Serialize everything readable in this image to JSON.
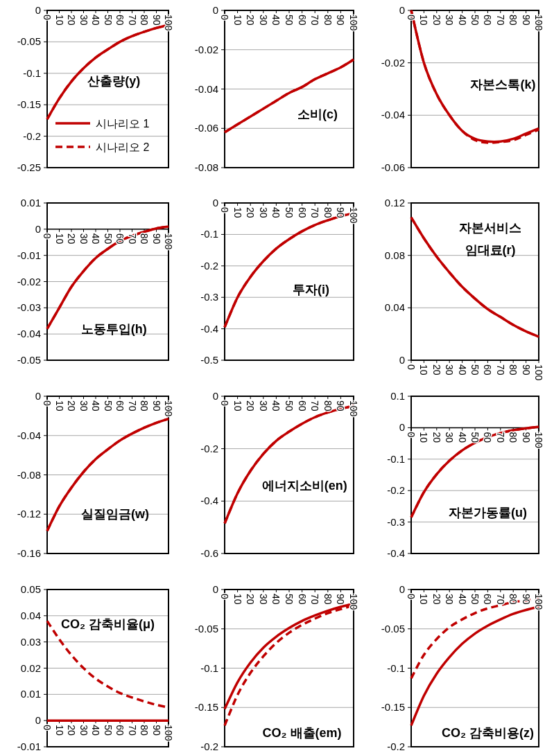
{
  "chart_data": [
    {
      "type": "line",
      "title": "산출량(y)",
      "x": [
        0,
        10,
        20,
        30,
        40,
        50,
        60,
        70,
        80,
        90,
        100
      ],
      "xlim": [
        0,
        100
      ],
      "xticks": [
        0,
        10,
        20,
        30,
        40,
        50,
        60,
        70,
        80,
        90,
        100
      ],
      "ylim": [
        -0.25,
        0
      ],
      "yticks": [
        -0.25,
        -0.2,
        -0.15,
        -0.1,
        -0.05,
        0
      ],
      "grid": "y",
      "legend": "bottom left",
      "series": [
        {
          "name": "시나리오 1",
          "color": "#c00000",
          "line_style": "solid",
          "values": [
            -0.173,
            -0.14,
            -0.113,
            -0.092,
            -0.075,
            -0.062,
            -0.05,
            -0.041,
            -0.034,
            -0.028,
            -0.023
          ]
        },
        {
          "name": "시나리오 2",
          "color": "#c00000",
          "line_style": "dashed",
          "values": [
            -0.173,
            -0.14,
            -0.113,
            -0.092,
            -0.075,
            -0.062,
            -0.05,
            -0.041,
            -0.034,
            -0.028,
            -0.023
          ]
        }
      ]
    },
    {
      "type": "line",
      "title": "소비(c)",
      "x": [
        0,
        10,
        20,
        30,
        40,
        50,
        60,
        70,
        80,
        90,
        100
      ],
      "xlim": [
        0,
        100
      ],
      "xticks": [
        0,
        10,
        20,
        30,
        40,
        50,
        60,
        70,
        80,
        90,
        100
      ],
      "ylim": [
        -0.08,
        0
      ],
      "yticks": [
        -0.08,
        -0.06,
        -0.04,
        -0.02,
        0
      ],
      "grid": "y",
      "series": [
        {
          "color": "#c00000",
          "line_style": "solid",
          "values": [
            -0.062,
            -0.058,
            -0.054,
            -0.05,
            -0.046,
            -0.042,
            -0.039,
            -0.035,
            -0.032,
            -0.029,
            -0.025
          ]
        },
        {
          "color": "#c00000",
          "line_style": "dashed",
          "values": [
            -0.062,
            -0.058,
            -0.054,
            -0.05,
            -0.046,
            -0.042,
            -0.039,
            -0.035,
            -0.032,
            -0.029,
            -0.025
          ]
        }
      ]
    },
    {
      "type": "line",
      "title": "자본스톡(k)",
      "x": [
        0,
        10,
        20,
        30,
        40,
        50,
        60,
        70,
        80,
        90,
        100
      ],
      "xlim": [
        0,
        100
      ],
      "xticks": [
        0,
        10,
        20,
        30,
        40,
        50,
        60,
        70,
        80,
        90,
        100
      ],
      "ylim": [
        -0.06,
        0
      ],
      "yticks": [
        -0.06,
        -0.04,
        -0.02,
        0
      ],
      "grid": "y",
      "series": [
        {
          "color": "#c00000",
          "line_style": "solid",
          "values": [
            0,
            -0.02,
            -0.032,
            -0.04,
            -0.046,
            -0.049,
            -0.05,
            -0.05,
            -0.049,
            -0.047,
            -0.045
          ]
        },
        {
          "color": "#c00000",
          "line_style": "dashed",
          "values": [
            0,
            -0.02,
            -0.032,
            -0.04,
            -0.046,
            -0.0495,
            -0.0505,
            -0.0502,
            -0.0495,
            -0.0475,
            -0.0455
          ]
        }
      ]
    },
    {
      "type": "line",
      "title": "노동투입(h)",
      "x": [
        0,
        10,
        20,
        30,
        40,
        50,
        60,
        70,
        80,
        90,
        100
      ],
      "xlim": [
        0,
        100
      ],
      "xticks": [
        0,
        10,
        20,
        30,
        40,
        50,
        60,
        70,
        80,
        90,
        100
      ],
      "ylim": [
        -0.05,
        0.01
      ],
      "yticks": [
        -0.05,
        -0.04,
        -0.03,
        -0.02,
        -0.01,
        0,
        0.01
      ],
      "grid": "y",
      "series": [
        {
          "color": "#c00000",
          "line_style": "solid",
          "values": [
            -0.038,
            -0.03,
            -0.022,
            -0.016,
            -0.011,
            -0.0075,
            -0.0045,
            -0.0025,
            -0.001,
            0.0003,
            0.001
          ]
        },
        {
          "color": "#c00000",
          "line_style": "dashed",
          "values": [
            -0.038,
            -0.03,
            -0.022,
            -0.016,
            -0.011,
            -0.0075,
            -0.0045,
            -0.0025,
            -0.001,
            0.0003,
            0.001
          ]
        }
      ]
    },
    {
      "type": "line",
      "title": "투자(i)",
      "x": [
        0,
        10,
        20,
        30,
        40,
        50,
        60,
        70,
        80,
        90,
        100
      ],
      "xlim": [
        0,
        100
      ],
      "xticks": [
        0,
        10,
        20,
        30,
        40,
        50,
        60,
        70,
        80,
        90,
        100
      ],
      "ylim": [
        -0.5,
        0
      ],
      "yticks": [
        -0.5,
        -0.4,
        -0.3,
        -0.2,
        -0.1,
        0
      ],
      "grid": "y",
      "series": [
        {
          "color": "#c00000",
          "line_style": "solid",
          "values": [
            -0.395,
            -0.3,
            -0.235,
            -0.185,
            -0.145,
            -0.115,
            -0.09,
            -0.07,
            -0.055,
            -0.042,
            -0.032
          ]
        },
        {
          "color": "#c00000",
          "line_style": "dashed",
          "values": [
            -0.395,
            -0.3,
            -0.235,
            -0.185,
            -0.145,
            -0.115,
            -0.09,
            -0.07,
            -0.055,
            -0.042,
            -0.032
          ]
        }
      ]
    },
    {
      "type": "line",
      "title": "자본서비스\n임대료(r)",
      "x": [
        0,
        10,
        20,
        30,
        40,
        50,
        60,
        70,
        80,
        90,
        100
      ],
      "xlim": [
        0,
        100
      ],
      "xticks": [
        0,
        10,
        20,
        30,
        40,
        50,
        60,
        70,
        80,
        90,
        100
      ],
      "ylim": [
        0,
        0.12
      ],
      "yticks": [
        0,
        0.04,
        0.08,
        0.12
      ],
      "grid": "y",
      "series": [
        {
          "color": "#c00000",
          "line_style": "solid",
          "values": [
            0.109,
            0.093,
            0.079,
            0.067,
            0.056,
            0.047,
            0.039,
            0.033,
            0.027,
            0.022,
            0.018
          ]
        },
        {
          "color": "#c00000",
          "line_style": "dashed",
          "values": [
            0.109,
            0.093,
            0.079,
            0.067,
            0.056,
            0.047,
            0.039,
            0.033,
            0.027,
            0.022,
            0.018
          ]
        }
      ]
    },
    {
      "type": "line",
      "title": "실질임금(w)",
      "x": [
        0,
        10,
        20,
        30,
        40,
        50,
        60,
        70,
        80,
        90,
        100
      ],
      "xlim": [
        0,
        100
      ],
      "xticks": [
        0,
        10,
        20,
        30,
        40,
        50,
        60,
        70,
        80,
        90,
        100
      ],
      "ylim": [
        -0.16,
        0
      ],
      "yticks": [
        -0.16,
        -0.12,
        -0.08,
        -0.04,
        0
      ],
      "grid": "y",
      "series": [
        {
          "color": "#c00000",
          "line_style": "solid",
          "values": [
            -0.137,
            -0.112,
            -0.093,
            -0.077,
            -0.064,
            -0.054,
            -0.045,
            -0.038,
            -0.032,
            -0.027,
            -0.023
          ]
        },
        {
          "color": "#c00000",
          "line_style": "dashed",
          "values": [
            -0.137,
            -0.112,
            -0.093,
            -0.077,
            -0.064,
            -0.054,
            -0.045,
            -0.038,
            -0.032,
            -0.027,
            -0.023
          ]
        }
      ]
    },
    {
      "type": "line",
      "title": "에너지소비(en)",
      "x": [
        0,
        10,
        20,
        30,
        40,
        50,
        60,
        70,
        80,
        90,
        100
      ],
      "xlim": [
        0,
        100
      ],
      "xticks": [
        0,
        10,
        20,
        30,
        40,
        50,
        60,
        70,
        80,
        90,
        100
      ],
      "ylim": [
        -0.6,
        0
      ],
      "yticks": [
        -0.6,
        -0.4,
        -0.2,
        0
      ],
      "grid": "y",
      "series": [
        {
          "color": "#c00000",
          "line_style": "solid",
          "values": [
            -0.485,
            -0.37,
            -0.285,
            -0.22,
            -0.17,
            -0.135,
            -0.105,
            -0.08,
            -0.062,
            -0.048,
            -0.037
          ]
        },
        {
          "color": "#c00000",
          "line_style": "dashed",
          "values": [
            -0.485,
            -0.37,
            -0.285,
            -0.22,
            -0.17,
            -0.135,
            -0.105,
            -0.08,
            -0.062,
            -0.048,
            -0.037
          ]
        }
      ]
    },
    {
      "type": "line",
      "title": "자본가동률(u)",
      "x": [
        0,
        10,
        20,
        30,
        40,
        50,
        60,
        70,
        80,
        90,
        100
      ],
      "xlim": [
        0,
        100
      ],
      "xticks": [
        0,
        10,
        20,
        30,
        40,
        50,
        60,
        70,
        80,
        90,
        100
      ],
      "ylim": [
        -0.4,
        0.1
      ],
      "yticks": [
        -0.4,
        -0.3,
        -0.2,
        -0.1,
        0,
        0.1
      ],
      "grid": "y",
      "series": [
        {
          "color": "#c00000",
          "line_style": "solid",
          "values": [
            -0.285,
            -0.205,
            -0.148,
            -0.105,
            -0.072,
            -0.048,
            -0.03,
            -0.017,
            -0.008,
            -0.002,
            0.003
          ]
        },
        {
          "color": "#c00000",
          "line_style": "dashed",
          "values": [
            -0.285,
            -0.205,
            -0.148,
            -0.105,
            -0.072,
            -0.048,
            -0.03,
            -0.017,
            -0.008,
            -0.002,
            0.003
          ]
        }
      ]
    },
    {
      "type": "line",
      "title": "CO₂ 감축비율(μ)",
      "x": [
        0,
        10,
        20,
        30,
        40,
        50,
        60,
        70,
        80,
        90,
        100
      ],
      "xlim": [
        0,
        100
      ],
      "xticks": [
        0,
        10,
        20,
        30,
        40,
        50,
        60,
        70,
        80,
        90,
        100
      ],
      "ylim": [
        -0.01,
        0.05
      ],
      "yticks": [
        -0.01,
        0,
        0.01,
        0.02,
        0.03,
        0.04,
        0.05
      ],
      "grid": "y",
      "series": [
        {
          "color": "#c00000",
          "line_style": "solid",
          "values": [
            0,
            0,
            0,
            0,
            0,
            0,
            0,
            0,
            0,
            0,
            0
          ]
        },
        {
          "color": "#c00000",
          "line_style": "dashed",
          "values": [
            0.038,
            0.031,
            0.025,
            0.02,
            0.016,
            0.013,
            0.0105,
            0.0088,
            0.0073,
            0.006,
            0.005
          ]
        }
      ]
    },
    {
      "type": "line",
      "title": "CO₂ 배출(em)",
      "x": [
        0,
        10,
        20,
        30,
        40,
        50,
        60,
        70,
        80,
        90,
        100
      ],
      "xlim": [
        0,
        100
      ],
      "xticks": [
        0,
        10,
        20,
        30,
        40,
        50,
        60,
        70,
        80,
        90,
        100
      ],
      "ylim": [
        -0.2,
        0
      ],
      "yticks": [
        -0.2,
        -0.15,
        -0.1,
        -0.05,
        0
      ],
      "grid": "y",
      "series": [
        {
          "color": "#c00000",
          "line_style": "solid",
          "values": [
            -0.152,
            -0.118,
            -0.093,
            -0.074,
            -0.06,
            -0.049,
            -0.04,
            -0.033,
            -0.027,
            -0.022,
            -0.018
          ]
        },
        {
          "color": "#c00000",
          "line_style": "dashed",
          "values": [
            -0.173,
            -0.134,
            -0.106,
            -0.085,
            -0.068,
            -0.055,
            -0.045,
            -0.037,
            -0.03,
            -0.025,
            -0.02
          ]
        }
      ]
    },
    {
      "type": "line",
      "title": "CO₂ 감축비용(z)",
      "x": [
        0,
        10,
        20,
        30,
        40,
        50,
        60,
        70,
        80,
        90,
        100
      ],
      "xlim": [
        0,
        100
      ],
      "xticks": [
        0,
        10,
        20,
        30,
        40,
        50,
        60,
        70,
        80,
        90,
        100
      ],
      "ylim": [
        -0.2,
        0
      ],
      "yticks": [
        -0.2,
        -0.15,
        -0.1,
        -0.05,
        0
      ],
      "grid": "y",
      "series": [
        {
          "color": "#c00000",
          "line_style": "solid",
          "values": [
            -0.173,
            -0.135,
            -0.107,
            -0.086,
            -0.069,
            -0.056,
            -0.046,
            -0.038,
            -0.031,
            -0.026,
            -0.022
          ]
        },
        {
          "color": "#c00000",
          "line_style": "dashed",
          "values": [
            -0.113,
            -0.083,
            -0.063,
            -0.048,
            -0.038,
            -0.03,
            -0.024,
            -0.02,
            -0.016,
            -0.014,
            -0.012
          ]
        }
      ]
    }
  ]
}
